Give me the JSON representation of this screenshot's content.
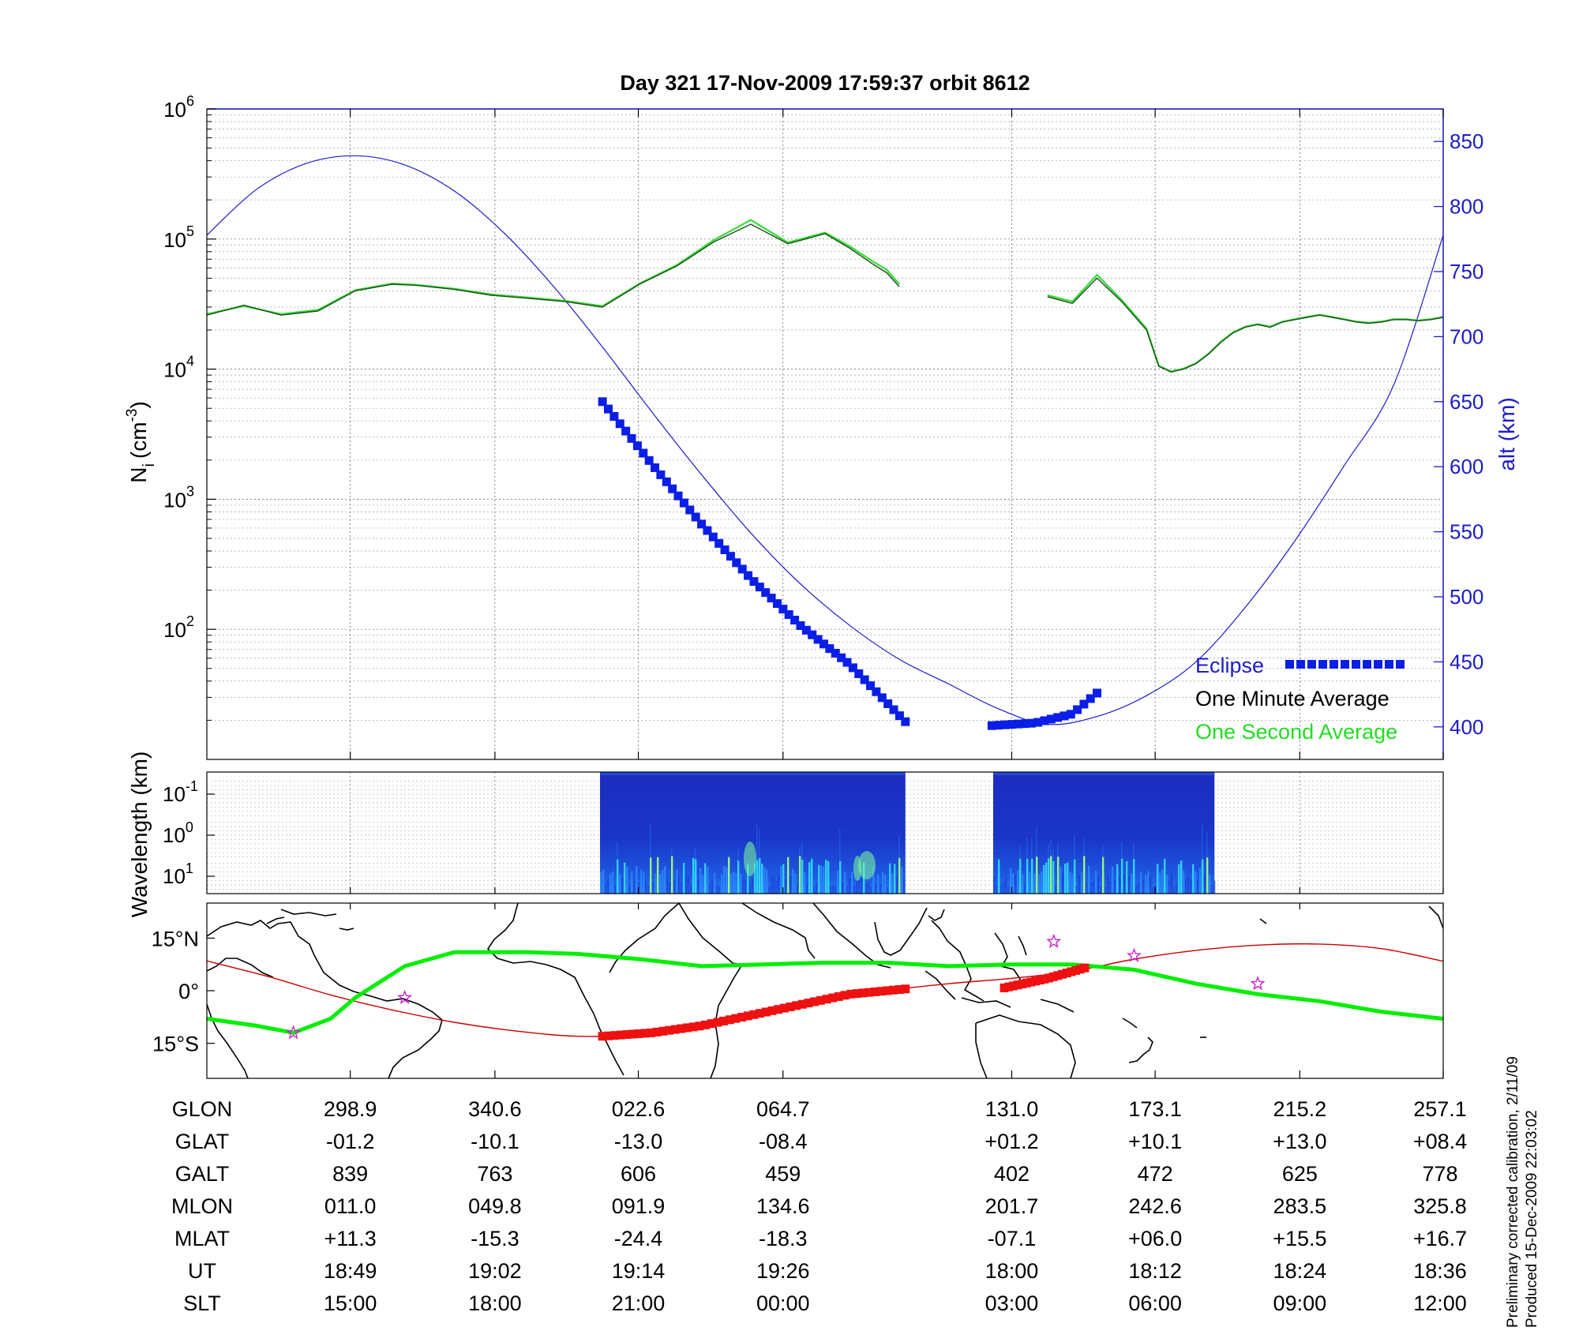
{
  "chart_data": [
    {
      "type": "line",
      "title": "Day 321  17-Nov-2009 17:59:37   orbit 8612",
      "ylabel": "N",
      "ylabel_sub": "i",
      "ylabel_unit_open": "(cm",
      "ylabel_unit_exp": "-3",
      "ylabel_unit_close": ")",
      "y_scale": "log",
      "ylim": [
        10,
        1000000
      ],
      "y_ticks": [
        {
          "base": "10",
          "exp": "2",
          "value": 100
        },
        {
          "base": "10",
          "exp": "3",
          "value": 1000
        },
        {
          "base": "10",
          "exp": "4",
          "value": 10000
        },
        {
          "base": "10",
          "exp": "5",
          "value": 100000
        },
        {
          "base": "10",
          "exp": "6",
          "value": 1000000
        }
      ],
      "y2label": "alt (km)",
      "y2lim": [
        375,
        875
      ],
      "y2_ticks": [
        "400",
        "450",
        "500",
        "550",
        "600",
        "650",
        "700",
        "750",
        "800",
        "850"
      ],
      "grid": true,
      "legend_position": "bottom-right",
      "legend": [
        "Eclipse",
        "One Minute Average",
        "One Second Average"
      ],
      "series": [
        {
          "name": "One Minute Average",
          "axis": "left",
          "x": [
            0,
            3,
            6,
            9,
            12,
            15,
            17,
            20,
            23,
            26,
            29,
            32,
            35,
            38,
            41,
            44,
            47,
            50,
            52,
            54,
            55,
            56,
            57,
            58,
            60,
            62,
            64,
            66,
            68,
            70,
            72,
            74,
            76,
            77,
            78,
            79,
            80,
            81,
            82,
            83,
            84,
            85,
            86,
            87,
            88,
            89,
            90,
            91,
            92,
            93,
            94,
            95,
            96,
            97,
            98,
            99,
            100
          ],
          "y": [
            26000,
            31000,
            26000,
            28000,
            40000,
            45000,
            44000,
            41000,
            37000,
            35000,
            33000,
            30000,
            45000,
            62000,
            95000,
            130000,
            92000,
            110000,
            85000,
            63000,
            55000,
            43000,
            null,
            null,
            null,
            null,
            null,
            null,
            36000,
            32000,
            50000,
            33000,
            20000,
            10500,
            9500,
            10000,
            11000,
            13000,
            16000,
            19000,
            21000,
            22000,
            21000,
            23000,
            24000,
            25000,
            26000,
            25000,
            24000,
            23000,
            22500,
            23000,
            24000,
            24000,
            23500,
            24000,
            25000
          ]
        },
        {
          "name": "One Second Average",
          "axis": "left",
          "x": [
            0,
            3,
            6,
            9,
            12,
            15,
            17,
            20,
            23,
            26,
            29,
            32,
            35,
            38,
            41,
            44,
            47,
            50,
            52,
            54,
            55,
            56,
            57,
            58,
            60,
            62,
            64,
            66,
            68,
            70,
            72,
            74,
            76,
            77,
            78,
            79,
            80,
            81,
            82,
            83,
            84,
            85,
            86,
            87,
            88,
            89,
            90,
            91,
            92,
            93,
            94,
            95,
            96,
            97,
            98,
            99,
            100
          ],
          "y": [
            26500,
            30500,
            26500,
            28500,
            40500,
            45500,
            44500,
            41500,
            37500,
            35500,
            33500,
            30500,
            45500,
            63000,
            98000,
            140000,
            94000,
            112000,
            88000,
            66000,
            58000,
            45000,
            null,
            null,
            null,
            null,
            null,
            null,
            37000,
            33000,
            53000,
            34000,
            20500,
            10600,
            9600,
            10100,
            11100,
            13100,
            16200,
            19200,
            21200,
            22200,
            21200,
            23200,
            24200,
            25200,
            26200,
            25200,
            24200,
            23200,
            22700,
            23200,
            24200,
            24200,
            23700,
            24200,
            25200
          ]
        },
        {
          "name": "alt",
          "axis": "right",
          "x": [
            0,
            4,
            8,
            12,
            16,
            20,
            24,
            28,
            32,
            36,
            40,
            44,
            48,
            52,
            56,
            60,
            64,
            68,
            72,
            76,
            80,
            84,
            88,
            92,
            96,
            100
          ],
          "y": [
            778,
            813,
            833,
            839,
            832,
            812,
            780,
            739,
            692,
            642,
            594,
            549,
            510,
            478,
            452,
            433,
            414,
            402,
            408,
            424,
            450,
            492,
            543,
            601,
            663,
            778
          ]
        },
        {
          "name": "Eclipse",
          "axis": "right",
          "segments": [
            {
              "x": [
                32,
                36,
                40,
                44,
                48,
                52,
                56.5
              ],
              "y": [
                650,
                602,
                556,
                514,
                478,
                448,
                404
              ]
            },
            {
              "x": [
                63.5,
                67,
                70,
                72
              ],
              "y": [
                401,
                403,
                410,
                426
              ]
            }
          ]
        }
      ]
    },
    {
      "type": "heatmap",
      "ylabel": "Wavelength (km)",
      "y_ticks": [
        {
          "base": "10",
          "exp": "-1"
        },
        {
          "base": "10",
          "exp": "0"
        },
        {
          "base": "10",
          "exp": "1"
        }
      ],
      "colormap": [
        "#1414a0",
        "#1a3cd8",
        "#2a8cff",
        "#33e0ff",
        "#a0ff80"
      ],
      "data_blocks_x": [
        [
          31.8,
          56.5
        ],
        [
          63.6,
          81.5
        ]
      ]
    },
    {
      "type": "line",
      "subtype": "map",
      "y_ticks": [
        "15°N",
        "0°",
        "15°S"
      ],
      "ylim": [
        -25,
        25
      ],
      "series": [
        {
          "name": "magnetic equator",
          "color": "#ff0000",
          "x": [
            0,
            5,
            10,
            15,
            20,
            25,
            30,
            35,
            40,
            45,
            50,
            55,
            60,
            65,
            70,
            75,
            80,
            85,
            90,
            95,
            100
          ],
          "y": [
            8.5,
            4,
            -1.2,
            -5.5,
            -9,
            -11.5,
            -13,
            -12.5,
            -10.5,
            -7,
            -3,
            0,
            2,
            3.5,
            5.5,
            9,
            11.5,
            13,
            13.3,
            12,
            8.4
          ]
        },
        {
          "name": "dip equator",
          "color": "#00ee00",
          "x": [
            0,
            4,
            7,
            10,
            12,
            16,
            20,
            26,
            30,
            35,
            40,
            45,
            50,
            55,
            60,
            65,
            70,
            75,
            80,
            85,
            90,
            95,
            100
          ],
          "y": [
            -8,
            -10,
            -12,
            -8,
            -2,
            7,
            11,
            11,
            10.5,
            9,
            7,
            7.5,
            8,
            8,
            7,
            7.5,
            7.5,
            6,
            2,
            -1,
            -3,
            -6,
            -8
          ]
        },
        {
          "name": "Eclipse",
          "color": "#ee1111",
          "segments": [
            {
              "x": [
                32,
                36,
                40,
                44,
                48,
                52,
                56.5
              ],
              "y": [
                -13,
                -12,
                -10,
                -7,
                -4,
                -1,
                0.5
              ]
            },
            {
              "x": [
                64.5,
                68,
                71
              ],
              "y": [
                0.8,
                3.5,
                6.5
              ]
            }
          ]
        }
      ],
      "markers": {
        "color": "#cc22cc",
        "x": [
          7,
          16,
          68.5,
          75,
          85
        ],
        "y": [
          -12,
          -2,
          14,
          10,
          2
        ]
      }
    },
    {
      "type": "table",
      "row_labels": [
        "GLON",
        "GLAT",
        "GALT",
        "MLON",
        "MLAT",
        "UT",
        "SLT"
      ],
      "tick_x": [
        11.6,
        23.3,
        34.9,
        46.6,
        65.1,
        76.7,
        88.4,
        100
      ],
      "rows": [
        [
          "298.9",
          "340.6",
          "022.6",
          "064.7",
          "131.0",
          "173.1",
          "215.2",
          "257.1"
        ],
        [
          "-01.2",
          "-10.1",
          "-13.0",
          "-08.4",
          "+01.2",
          "+10.1",
          "+13.0",
          "+08.4"
        ],
        [
          "839",
          "763",
          "606",
          "459",
          "402",
          "472",
          "625",
          "778"
        ],
        [
          "011.0",
          "049.8",
          "091.9",
          "134.6",
          "201.7",
          "242.6",
          "283.5",
          "325.8"
        ],
        [
          "+11.3",
          "-15.3",
          "-24.4",
          "-18.3",
          "-07.1",
          "+06.0",
          "+15.5",
          "+16.7"
        ],
        [
          "18:49",
          "19:02",
          "19:14",
          "19:26",
          "18:00",
          "18:12",
          "18:24",
          "18:36"
        ],
        [
          "15:00",
          "18:00",
          "21:00",
          "00:00",
          "03:00",
          "06:00",
          "09:00",
          "12:00"
        ]
      ]
    }
  ],
  "footer": {
    "line1": "Preliminary corrected calibration, 2/11/09",
    "line2": "Produced 15-Dec-2009 22:03:02"
  },
  "colors": {
    "altitude": "#1c1cc8",
    "eclipse_blue": "#0a1ee6",
    "one_minute": "#1a4d1a",
    "one_second": "#33dd33",
    "eclipse_red": "#ee1111",
    "dip_equator": "#00ee00",
    "magnetic_equator": "#cc0000",
    "stars": "#cc22cc"
  }
}
